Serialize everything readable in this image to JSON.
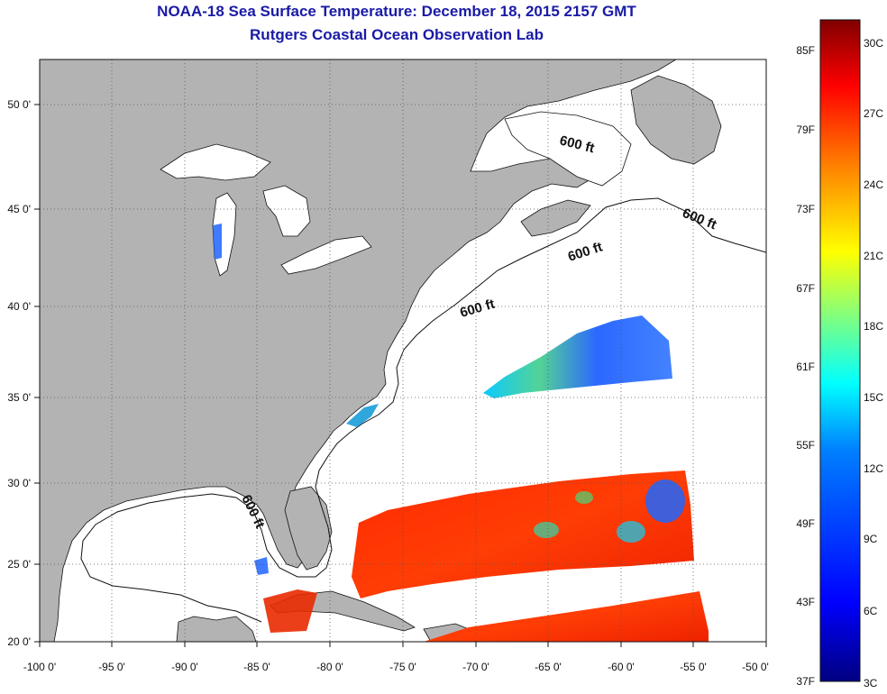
{
  "title": {
    "line1": "NOAA-18 Sea Surface Temperature:  December 18, 2015 2157 GMT",
    "line2": "Rutgers Coastal Ocean Observation Lab"
  },
  "map": {
    "lon_labels": [
      "-100 0'",
      "-95 0'",
      "-90 0'",
      "-85 0'",
      "-80 0'",
      "-75 0'",
      "-70 0'",
      "-65 0'",
      "-60 0'",
      "-55 0'",
      "-50 0'"
    ],
    "lat_labels": [
      "50 0'",
      "45 0'",
      "40 0'",
      "35 0'",
      "30 0'",
      "25 0'",
      "20 0'"
    ],
    "contour_label": "600 ft",
    "land_color": "#b3b3b3",
    "ocean_color": "#ffffff"
  },
  "colorbar": {
    "fahrenheit": [
      "85F",
      "79F",
      "73F",
      "67F",
      "61F",
      "55F",
      "49F",
      "43F",
      "37F"
    ],
    "celsius": [
      "30C",
      "27C",
      "24C",
      "21C",
      "18C",
      "15C",
      "12C",
      "9C",
      "6C",
      "3C"
    ],
    "colors": [
      "#800000",
      "#ff0000",
      "#ff8000",
      "#ffff00",
      "#80ff80",
      "#00ffff",
      "#0080ff",
      "#0000ff",
      "#000080"
    ]
  }
}
